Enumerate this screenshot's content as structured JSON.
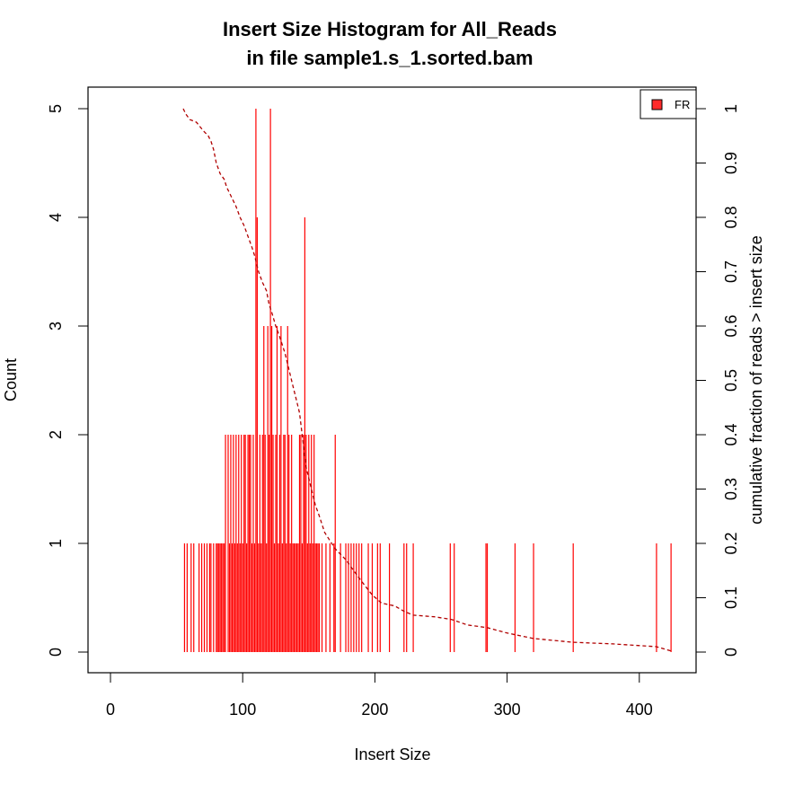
{
  "chart_data": {
    "type": "bar",
    "title_line1": "Insert Size Histogram for All_Reads",
    "title_line2": "in file sample1.s_1.sorted.bam",
    "xlabel": "Insert Size",
    "ylabel": "Count",
    "y2label": "cumulative fraction of reads > insert size",
    "xlim": [
      0,
      430
    ],
    "ylim": [
      0,
      5
    ],
    "y2lim": [
      0,
      1
    ],
    "x_ticks": [
      "0",
      "100",
      "200",
      "300",
      "400"
    ],
    "y_ticks": [
      "0",
      "1",
      "2",
      "3",
      "4",
      "5"
    ],
    "y2_ticks": [
      "0",
      "0.1",
      "0.2",
      "0.3",
      "0.4",
      "0.5",
      "0.6",
      "0.7",
      "0.8",
      "0.9",
      "1"
    ],
    "legend": {
      "position": "top-right",
      "label": "FR",
      "color": "#ff2a2a"
    },
    "bar_color": "#ff0000",
    "cumulative_color": "#b00000",
    "bars": [
      [
        56,
        1
      ],
      [
        58,
        1
      ],
      [
        61,
        1
      ],
      [
        63,
        1
      ],
      [
        67,
        1
      ],
      [
        69,
        1
      ],
      [
        71,
        1
      ],
      [
        73,
        1
      ],
      [
        75,
        1
      ],
      [
        76,
        1
      ],
      [
        78,
        1
      ],
      [
        80,
        1
      ],
      [
        81,
        1
      ],
      [
        82,
        1
      ],
      [
        83,
        1
      ],
      [
        84,
        1
      ],
      [
        85,
        1
      ],
      [
        86,
        1
      ],
      [
        87,
        2
      ],
      [
        89,
        2
      ],
      [
        90,
        1
      ],
      [
        91,
        2
      ],
      [
        92,
        1
      ],
      [
        93,
        2
      ],
      [
        94,
        1
      ],
      [
        95,
        2
      ],
      [
        96,
        1
      ],
      [
        97,
        2
      ],
      [
        98,
        1
      ],
      [
        99,
        2
      ],
      [
        100,
        1
      ],
      [
        101,
        2
      ],
      [
        102,
        2
      ],
      [
        103,
        1
      ],
      [
        104,
        2
      ],
      [
        105,
        2
      ],
      [
        106,
        2
      ],
      [
        107,
        1
      ],
      [
        108,
        2
      ],
      [
        109,
        1
      ],
      [
        110,
        5
      ],
      [
        111,
        4
      ],
      [
        112,
        1
      ],
      [
        113,
        2
      ],
      [
        114,
        1
      ],
      [
        115,
        2
      ],
      [
        116,
        3
      ],
      [
        117,
        2
      ],
      [
        118,
        1
      ],
      [
        119,
        3
      ],
      [
        120,
        2
      ],
      [
        121,
        5
      ],
      [
        122,
        3
      ],
      [
        123,
        2
      ],
      [
        124,
        1
      ],
      [
        125,
        2
      ],
      [
        126,
        3
      ],
      [
        127,
        1
      ],
      [
        128,
        2
      ],
      [
        129,
        3
      ],
      [
        130,
        1
      ],
      [
        131,
        2
      ],
      [
        132,
        2
      ],
      [
        133,
        1
      ],
      [
        134,
        3
      ],
      [
        135,
        2
      ],
      [
        136,
        1
      ],
      [
        137,
        2
      ],
      [
        138,
        1
      ],
      [
        139,
        1
      ],
      [
        140,
        1
      ],
      [
        141,
        1
      ],
      [
        142,
        1
      ],
      [
        143,
        2
      ],
      [
        144,
        2
      ],
      [
        145,
        1
      ],
      [
        146,
        2
      ],
      [
        147,
        4
      ],
      [
        148,
        2
      ],
      [
        149,
        1
      ],
      [
        150,
        2
      ],
      [
        151,
        1
      ],
      [
        152,
        2
      ],
      [
        153,
        1
      ],
      [
        154,
        2
      ],
      [
        155,
        1
      ],
      [
        156,
        1
      ],
      [
        157,
        1
      ],
      [
        158,
        1
      ],
      [
        160,
        1
      ],
      [
        163,
        1
      ],
      [
        166,
        1
      ],
      [
        169,
        1
      ],
      [
        170,
        2
      ],
      [
        174,
        1
      ],
      [
        178,
        1
      ],
      [
        180,
        1
      ],
      [
        182,
        1
      ],
      [
        184,
        1
      ],
      [
        186,
        1
      ],
      [
        188,
        1
      ],
      [
        190,
        1
      ],
      [
        195,
        1
      ],
      [
        198,
        1
      ],
      [
        202,
        1
      ],
      [
        204,
        1
      ],
      [
        211,
        1
      ],
      [
        222,
        1
      ],
      [
        224,
        1
      ],
      [
        229,
        1
      ],
      [
        257,
        1
      ],
      [
        260,
        1
      ],
      [
        284,
        1
      ],
      [
        285,
        1
      ],
      [
        306,
        1
      ],
      [
        320,
        1
      ],
      [
        350,
        1
      ],
      [
        413,
        1
      ],
      [
        424,
        1
      ]
    ],
    "cumulative": [
      [
        55,
        1.0
      ],
      [
        57,
        0.99
      ],
      [
        60,
        0.98
      ],
      [
        65,
        0.975
      ],
      [
        70,
        0.96
      ],
      [
        74,
        0.95
      ],
      [
        76,
        0.94
      ],
      [
        78,
        0.925
      ],
      [
        80,
        0.9
      ],
      [
        83,
        0.88
      ],
      [
        86,
        0.87
      ],
      [
        88,
        0.855
      ],
      [
        90,
        0.845
      ],
      [
        93,
        0.83
      ],
      [
        95,
        0.82
      ],
      [
        98,
        0.8
      ],
      [
        101,
        0.785
      ],
      [
        104,
        0.765
      ],
      [
        107,
        0.745
      ],
      [
        109,
        0.73
      ],
      [
        110,
        0.72
      ],
      [
        112,
        0.7
      ],
      [
        115,
        0.68
      ],
      [
        118,
        0.665
      ],
      [
        120,
        0.64
      ],
      [
        122,
        0.625
      ],
      [
        125,
        0.6
      ],
      [
        128,
        0.58
      ],
      [
        130,
        0.565
      ],
      [
        132,
        0.55
      ],
      [
        135,
        0.52
      ],
      [
        138,
        0.49
      ],
      [
        141,
        0.46
      ],
      [
        143,
        0.44
      ],
      [
        145,
        0.4
      ],
      [
        146,
        0.38
      ],
      [
        148,
        0.34
      ],
      [
        150,
        0.32
      ],
      [
        152,
        0.3
      ],
      [
        155,
        0.27
      ],
      [
        158,
        0.25
      ],
      [
        162,
        0.22
      ],
      [
        166,
        0.205
      ],
      [
        170,
        0.19
      ],
      [
        178,
        0.17
      ],
      [
        184,
        0.15
      ],
      [
        190,
        0.13
      ],
      [
        198,
        0.105
      ],
      [
        205,
        0.09
      ],
      [
        215,
        0.085
      ],
      [
        222,
        0.075
      ],
      [
        229,
        0.068
      ],
      [
        245,
        0.065
      ],
      [
        258,
        0.06
      ],
      [
        270,
        0.05
      ],
      [
        285,
        0.045
      ],
      [
        300,
        0.035
      ],
      [
        320,
        0.025
      ],
      [
        350,
        0.018
      ],
      [
        380,
        0.015
      ],
      [
        413,
        0.01
      ],
      [
        424,
        0.002
      ]
    ]
  }
}
